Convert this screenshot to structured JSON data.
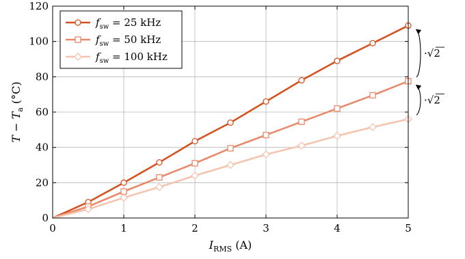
{
  "chart_data": {
    "type": "line",
    "x": [
      0,
      0.5,
      1,
      1.5,
      2,
      2.5,
      3,
      3.5,
      4,
      4.5,
      5
    ],
    "series": [
      {
        "name": "f_sw = 25 kHz",
        "name_parts": {
          "sym": "f",
          "sub": "sw",
          "val": "= 25 kHz"
        },
        "color": "#d4521f",
        "marker": "circle",
        "values": [
          0,
          9,
          20,
          31.5,
          43.5,
          54,
          66,
          78,
          89,
          99,
          109
        ]
      },
      {
        "name": "f_sw = 50 kHz",
        "name_parts": {
          "sym": "f",
          "sub": "sw",
          "val": "= 50 kHz"
        },
        "color": "#e8896a",
        "marker": "square",
        "values": [
          0,
          6.5,
          15,
          23,
          31,
          39.5,
          47,
          54.5,
          62,
          69.5,
          77.5
        ]
      },
      {
        "name": "f_sw = 100 kHz",
        "name_parts": {
          "sym": "f",
          "sub": "sw",
          "val": "= 100 kHz"
        },
        "color": "#f3c4ae",
        "marker": "diamond",
        "values": [
          0,
          5,
          11.5,
          17.5,
          24,
          30,
          36,
          41,
          46.5,
          51.5,
          56
        ]
      }
    ],
    "xlim": [
      0,
      5
    ],
    "ylim": [
      0,
      120
    ],
    "xticks": [
      0,
      1,
      2,
      3,
      4,
      5
    ],
    "yticks": [
      0,
      20,
      40,
      60,
      80,
      100,
      120
    ],
    "xlabel": {
      "main": "I",
      "sub": "RMS",
      "unit": "(A)"
    },
    "ylabel": {
      "main": "T − T",
      "sub": "a",
      "unit": "(°C)"
    },
    "grid": true,
    "legend_position": "top-left",
    "annotations": [
      {
        "text": "·√2",
        "from_series": 1,
        "to_series": 0,
        "at_x": 5
      },
      {
        "text": "·√2",
        "from_series": 2,
        "to_series": 1,
        "at_x": 5
      }
    ]
  }
}
